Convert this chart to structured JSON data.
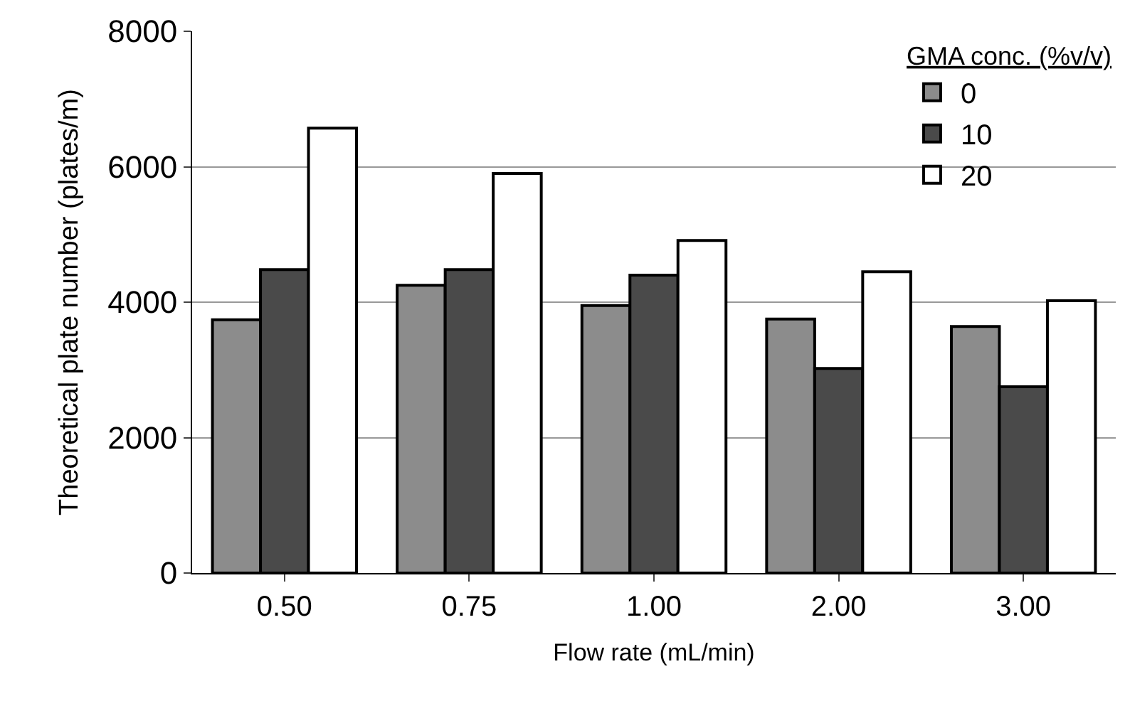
{
  "chart_data": {
    "type": "bar",
    "xlabel": "Flow rate (mL/min)",
    "ylabel": "Theoretical plate number (plates/m)",
    "legend_title": "GMA conc. (%v/v)",
    "categories": [
      "0.50",
      "0.75",
      "1.00",
      "2.00",
      "3.00"
    ],
    "series": [
      {
        "name": "0",
        "color": "#8c8c8c",
        "values": [
          3740,
          4250,
          3950,
          3750,
          3640
        ]
      },
      {
        "name": "10",
        "color": "#4a4a4a",
        "values": [
          4480,
          4480,
          4400,
          3020,
          2750
        ]
      },
      {
        "name": "20",
        "color": "#ffffff",
        "values": [
          6570,
          5900,
          4910,
          4450,
          4020
        ]
      }
    ],
    "ylim": [
      0,
      8000
    ],
    "yticks": [
      0,
      2000,
      4000,
      6000,
      8000
    ],
    "grid": "y",
    "legend": "top right"
  }
}
